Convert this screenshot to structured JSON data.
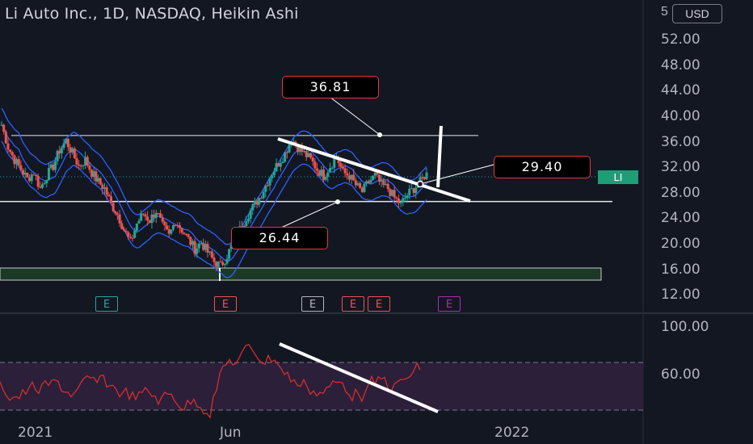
{
  "header": {
    "title": "Li Auto Inc., 1D, NASDAQ, Heikin Ashi",
    "currency": "USD",
    "axis_cut_label": "5"
  },
  "price_axis": [
    "52.00",
    "48.00",
    "44.00",
    "40.00",
    "36.00",
    "32.00",
    "28.00",
    "24.00",
    "20.00",
    "16.00",
    "12.00"
  ],
  "rsi_axis": [
    "100.00",
    "60.00"
  ],
  "time_axis": [
    "2021",
    "Jun",
    "2022"
  ],
  "callouts": {
    "top": "36.81",
    "right": "29.40",
    "bottom": "26.44"
  },
  "last_price_label": "LI",
  "earnings_markers": [
    "E",
    "E",
    "E",
    "E",
    "E",
    "E"
  ],
  "colors": {
    "bg": "#131722",
    "up": "#26a69a",
    "down": "#ef5350",
    "band": "#2962ff",
    "rsi": "#d32f2f",
    "callout_border": "#e0383d",
    "li_tag": "#1e9e77"
  },
  "chart_data": {
    "type": "candlestick",
    "title": "Li Auto Inc., 1D, NASDAQ, Heikin Ashi",
    "ylim": [
      12,
      54
    ],
    "yticks": [
      12,
      16,
      20,
      24,
      28,
      32,
      36,
      40,
      44,
      48,
      52
    ],
    "xticks": [
      "2021",
      "Jun",
      "2022"
    ],
    "close_path": [
      38.5,
      35,
      33,
      31.5,
      30,
      31,
      28.5,
      30.5,
      32,
      34.5,
      36,
      34,
      32,
      33,
      31,
      29.5,
      28.5,
      26,
      24.5,
      22,
      20,
      23,
      24.5,
      23.5,
      25,
      22.5,
      21,
      23.5,
      22,
      20.5,
      19,
      20,
      18.5,
      17,
      16.3,
      18,
      20,
      22,
      24,
      25.5,
      27,
      29,
      31,
      32.5,
      34,
      36.3,
      35,
      34,
      33,
      31.5,
      30.5,
      32,
      33.5,
      31,
      30.5,
      29,
      28,
      29.5,
      30.5,
      29,
      28.5,
      27,
      26,
      27.5,
      28.5,
      29.5,
      31
    ],
    "horizontal_levels": [
      36.81,
      26.44
    ],
    "annotations": [
      "36.81",
      "29.40",
      "26.44"
    ],
    "last_price": 29.4,
    "rsi": {
      "levels": [
        70,
        30
      ],
      "yticks": [
        100,
        60
      ]
    }
  }
}
